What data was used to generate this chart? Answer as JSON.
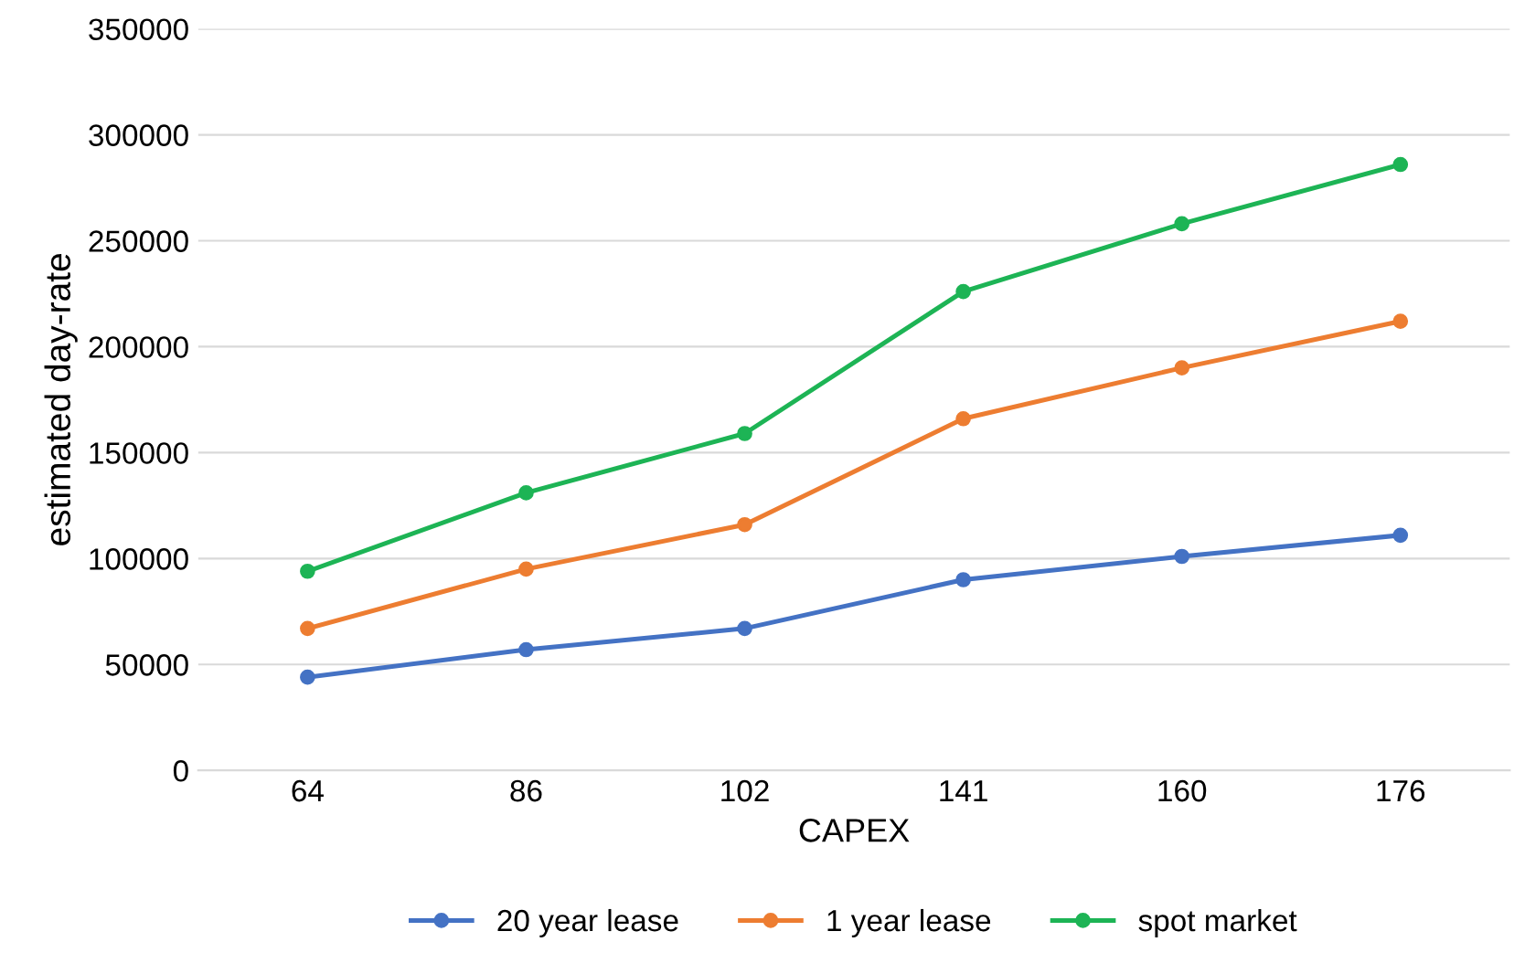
{
  "chart_data": {
    "type": "line",
    "xlabel": "CAPEX",
    "ylabel": "estimated day-rate",
    "categories": [
      "64",
      "86",
      "102",
      "141",
      "160",
      "176"
    ],
    "series": [
      {
        "name": "20 year lease",
        "color": "#4472c4",
        "values": [
          44000,
          57000,
          67000,
          90000,
          101000,
          111000
        ]
      },
      {
        "name": "1 year lease",
        "color": "#ed7d31",
        "values": [
          67000,
          95000,
          116000,
          166000,
          190000,
          212000
        ]
      },
      {
        "name": "spot market",
        "color": "#1db455",
        "values": [
          94000,
          131000,
          159000,
          226000,
          258000,
          286000
        ]
      }
    ],
    "ylim": [
      0,
      350000
    ],
    "yticks": [
      0,
      50000,
      100000,
      150000,
      200000,
      250000,
      300000,
      350000
    ],
    "grid": "y",
    "legend": "bottom",
    "marker": "circle",
    "line_style": "solid"
  }
}
